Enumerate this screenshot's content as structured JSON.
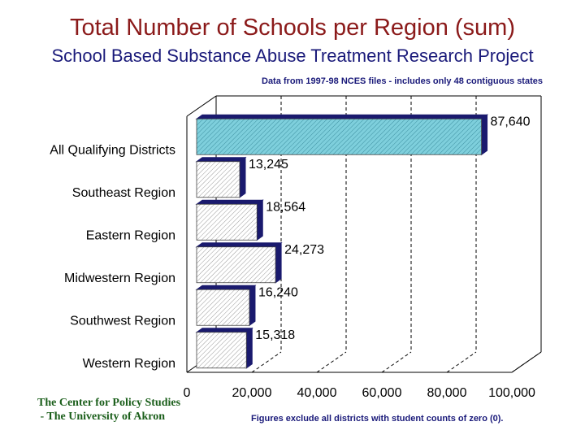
{
  "header": {
    "title": "Total Number of Schools per Region (sum)",
    "subtitle": "School Based Substance Abuse Treatment Research Project",
    "data_note": "Data from 1997-98 NCES files - includes only 48 contiguous states"
  },
  "footer": {
    "credit_line1": "The Center for Policy Studies",
    "credit_line2": " - The University of Akron",
    "exclusion_note": "Figures exclude all districts with student counts of zero (0)."
  },
  "chart_data": {
    "type": "bar",
    "orientation": "horizontal",
    "title": "Total Number of Schools per Region (sum)",
    "categories": [
      "All Qualifying Districts",
      "Southeast Region",
      "Eastern Region",
      "Midwestern Region",
      "Southwest Region",
      "Western Region"
    ],
    "values": [
      87640,
      13245,
      18564,
      24273,
      16240,
      15318
    ],
    "value_labels": [
      "87,640",
      "13,245",
      "18,564",
      "24,273",
      "16,240",
      "15,318"
    ],
    "xlim": [
      0,
      100000
    ],
    "x_ticks": [
      0,
      20000,
      40000,
      60000,
      80000,
      100000
    ],
    "x_tick_labels": [
      "0",
      "20,000",
      "40,000",
      "60,000",
      "80,000",
      "100,000"
    ],
    "grid": "vertical dashed",
    "style": "3d",
    "colors": {
      "highlight_bar": "#7ecfdc",
      "bar": "#ffffff",
      "bar_depth": "#1a1a6e",
      "grid": "#000000"
    }
  }
}
